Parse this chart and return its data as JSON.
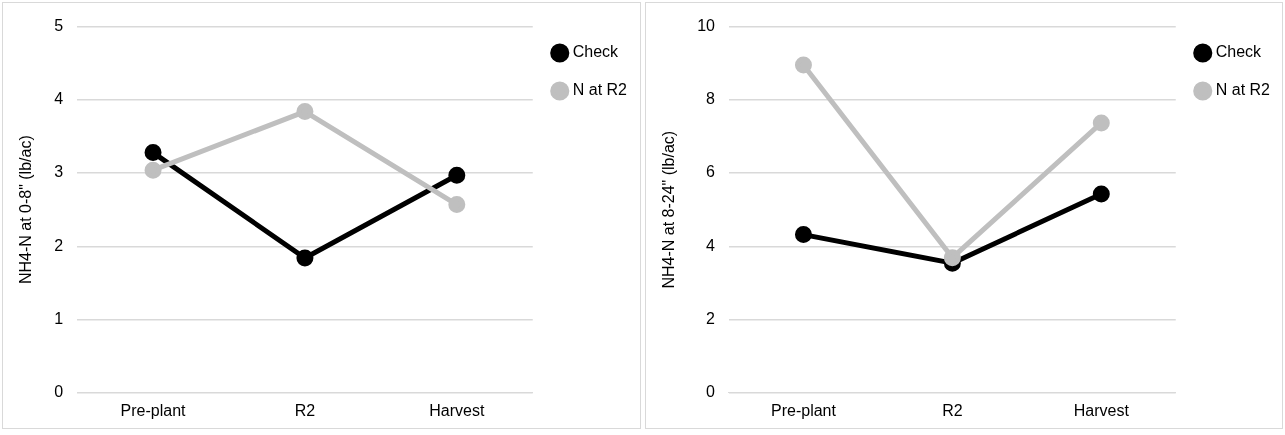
{
  "chart_data": [
    {
      "type": "line",
      "ylabel": "NH4-N at 0-8\" (lb/ac)",
      "categories": [
        "Pre-plant",
        "R2",
        "Harvest"
      ],
      "series": [
        {
          "name": "Check",
          "color": "#000000",
          "values": [
            3.28,
            1.84,
            2.97
          ]
        },
        {
          "name": "N at R2",
          "color": "#bfbfbf",
          "values": [
            3.04,
            3.84,
            2.57
          ]
        }
      ],
      "ylim": [
        0,
        5
      ],
      "yticks": [
        0,
        1,
        2,
        3,
        4,
        5
      ],
      "grid": "y",
      "legend": "top right",
      "marker": "circle"
    },
    {
      "type": "line",
      "ylabel": "NH4-N at 8-24\" (lb/ac)",
      "categories": [
        "Pre-plant",
        "R2",
        "Harvest"
      ],
      "series": [
        {
          "name": "Check",
          "color": "#000000",
          "values": [
            4.32,
            3.54,
            5.43
          ]
        },
        {
          "name": "N at R2",
          "color": "#bfbfbf",
          "values": [
            8.95,
            3.69,
            7.37
          ]
        }
      ],
      "ylim": [
        0,
        10
      ],
      "yticks": [
        0,
        2,
        4,
        6,
        8,
        10
      ],
      "grid": "y",
      "legend": "top right",
      "marker": "circle"
    }
  ]
}
